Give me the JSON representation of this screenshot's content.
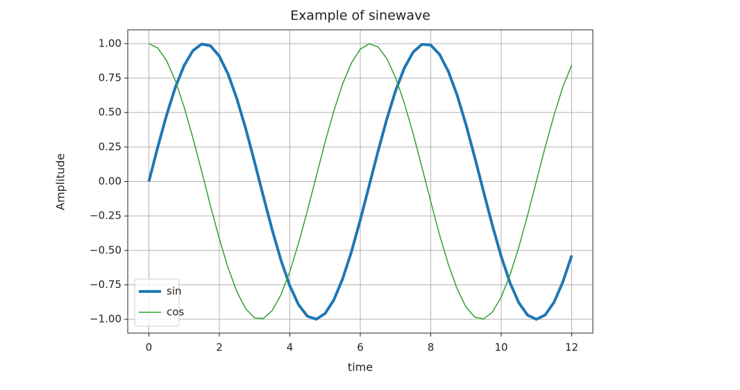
{
  "chart_data": {
    "type": "line",
    "title": "Example of sinewave",
    "xlabel": "time",
    "ylabel": "Amplitude",
    "x": [
      0,
      0.25,
      0.5,
      0.75,
      1,
      1.25,
      1.5,
      1.75,
      2,
      2.25,
      2.5,
      2.75,
      3,
      3.25,
      3.5,
      3.75,
      4,
      4.25,
      4.5,
      4.75,
      5,
      5.25,
      5.5,
      5.75,
      6,
      6.25,
      6.5,
      6.75,
      7,
      7.25,
      7.5,
      7.75,
      8,
      8.25,
      8.5,
      8.75,
      9,
      9.25,
      9.5,
      9.75,
      10,
      10.25,
      10.5,
      10.75,
      11,
      11.25,
      11.5,
      11.75,
      12
    ],
    "series": [
      {
        "name": "sin",
        "color": "#1f77b4",
        "linewidth": 4,
        "values": [
          0,
          0.247,
          0.479,
          0.682,
          0.841,
          0.949,
          0.997,
          0.984,
          0.909,
          0.778,
          0.598,
          0.382,
          0.141,
          -0.108,
          -0.351,
          -0.572,
          -0.757,
          -0.895,
          -0.978,
          -0.999,
          -0.959,
          -0.859,
          -0.706,
          -0.509,
          -0.279,
          -0.033,
          0.215,
          0.45,
          0.657,
          0.823,
          0.938,
          0.995,
          0.989,
          0.922,
          0.798,
          0.625,
          0.412,
          0.174,
          -0.075,
          -0.319,
          -0.544,
          -0.735,
          -0.88,
          -0.97,
          -1.0,
          -0.968,
          -0.876,
          -0.728,
          -0.537
        ]
      },
      {
        "name": "cos",
        "color": "#2ca02c",
        "linewidth": 1.5,
        "values": [
          1,
          0.969,
          0.878,
          0.732,
          0.54,
          0.315,
          0.071,
          -0.178,
          -0.416,
          -0.628,
          -0.801,
          -0.924,
          -0.99,
          -0.994,
          -0.936,
          -0.821,
          -0.654,
          -0.446,
          -0.211,
          0.037,
          0.284,
          0.512,
          0.709,
          0.861,
          0.96,
          0.999,
          0.977,
          0.893,
          0.754,
          0.568,
          0.347,
          0.103,
          -0.146,
          -0.387,
          -0.602,
          -0.78,
          -0.911,
          -0.985,
          -0.997,
          -0.948,
          -0.839,
          -0.678,
          -0.476,
          -0.243,
          0.004,
          0.252,
          0.483,
          0.686,
          0.844
        ]
      }
    ],
    "xlim": [
      -0.6,
      12.6
    ],
    "ylim": [
      -1.1,
      1.1
    ],
    "xticks": [
      0,
      2,
      4,
      6,
      8,
      10,
      12
    ],
    "yticks": [
      {
        "value": 1,
        "label": "1.00"
      },
      {
        "value": 0.75,
        "label": "0.75"
      },
      {
        "value": 0.5,
        "label": "0.50"
      },
      {
        "value": 0.25,
        "label": "0.25"
      },
      {
        "value": 0,
        "label": "0.00"
      },
      {
        "value": -0.25,
        "label": "−0.25"
      },
      {
        "value": -0.5,
        "label": "−0.50"
      },
      {
        "value": -0.75,
        "label": "−0.75"
      },
      {
        "value": -1,
        "label": "−1.00"
      }
    ],
    "grid": true,
    "legend": "lower left"
  }
}
